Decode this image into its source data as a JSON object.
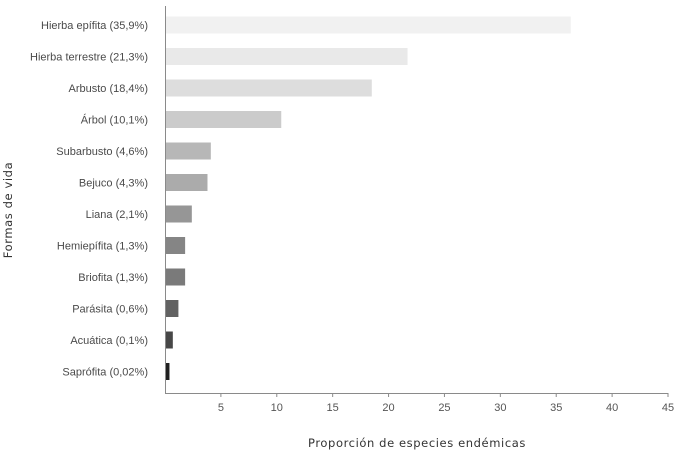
{
  "chart_data": {
    "type": "bar",
    "orientation": "horizontal",
    "categories": [
      "Hierba epífita (35,9%)",
      "Hierba terrestre (21,3%)",
      "Arbusto (18,4%)",
      "Árbol (10,1%)",
      "Subarbusto (4,6%)",
      "Bejuco (4,3%)",
      "Liana (2,1%)",
      "Hemiepífita (1,3%)",
      "Briofita (1,3%)",
      "Parásita (0,6%)",
      "Acuática (0,1%)",
      "Saprófita (0,02%)"
    ],
    "values": [
      36.3,
      21.7,
      18.5,
      10.4,
      4.1,
      3.8,
      2.4,
      1.8,
      1.8,
      1.2,
      0.7,
      0.4
    ],
    "bar_colors": [
      "#f1f1f1",
      "#e9e9e9",
      "#dddddd",
      "#cbcbcb",
      "#b7b7b7",
      "#ababab",
      "#969696",
      "#858585",
      "#7a7a7a",
      "#626262",
      "#474747",
      "#202020"
    ],
    "xlabel": "Proporción de especies endémicas",
    "ylabel": "Formas de vida",
    "xlim": [
      0,
      45
    ],
    "xticks": [
      "5",
      "10",
      "15",
      "20",
      "25",
      "30",
      "35",
      "40",
      "45"
    ],
    "grid": false
  }
}
